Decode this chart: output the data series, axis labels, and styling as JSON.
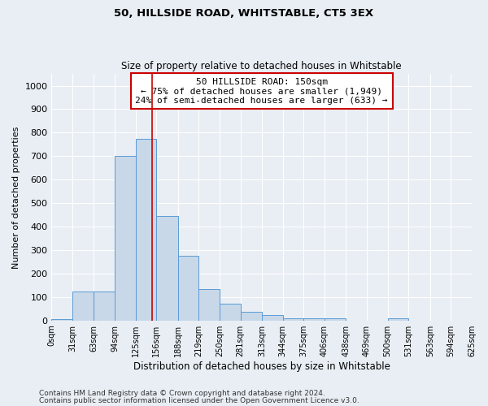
{
  "title1": "50, HILLSIDE ROAD, WHITSTABLE, CT5 3EX",
  "title2": "Size of property relative to detached houses in Whitstable",
  "xlabel": "Distribution of detached houses by size in Whitstable",
  "ylabel": "Number of detached properties",
  "bin_edges": [
    0,
    31,
    63,
    94,
    125,
    156,
    188,
    219,
    250,
    281,
    313,
    344,
    375,
    406,
    438,
    469,
    500,
    531,
    563,
    594,
    625
  ],
  "bar_heights": [
    5,
    125,
    125,
    700,
    775,
    445,
    275,
    135,
    70,
    38,
    22,
    10,
    10,
    10,
    0,
    0,
    8,
    0,
    0,
    0
  ],
  "bar_facecolor": "#c8d8e8",
  "bar_edgecolor": "#5b9bd5",
  "bg_color": "#e8eef4",
  "grid_color": "#ffffff",
  "vline_x": 150,
  "vline_color": "#cc0000",
  "annotation_text": "50 HILLSIDE ROAD: 150sqm\n← 75% of detached houses are smaller (1,949)\n24% of semi-detached houses are larger (633) →",
  "annotation_box_edgecolor": "#cc0000",
  "annotation_box_facecolor": "#ffffff",
  "ylim": [
    0,
    1050
  ],
  "yticks": [
    0,
    100,
    200,
    300,
    400,
    500,
    600,
    700,
    800,
    900,
    1000
  ],
  "tick_labels": [
    "0sqm",
    "31sqm",
    "63sqm",
    "94sqm",
    "125sqm",
    "156sqm",
    "188sqm",
    "219sqm",
    "250sqm",
    "281sqm",
    "313sqm",
    "344sqm",
    "375sqm",
    "406sqm",
    "438sqm",
    "469sqm",
    "500sqm",
    "531sqm",
    "563sqm",
    "594sqm",
    "625sqm"
  ],
  "footer1": "Contains HM Land Registry data © Crown copyright and database right 2024.",
  "footer2": "Contains public sector information licensed under the Open Government Licence v3.0."
}
